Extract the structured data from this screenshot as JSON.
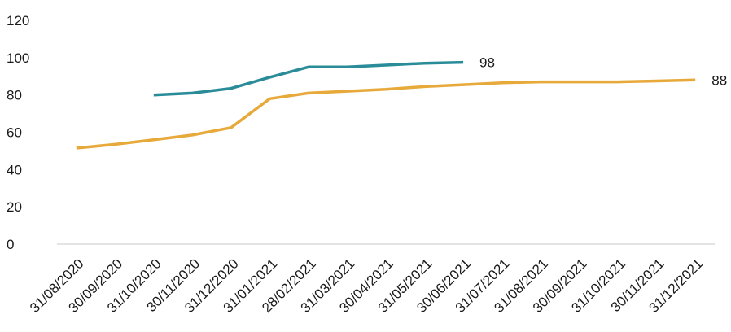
{
  "chart_data": {
    "type": "line",
    "title": "",
    "xlabel": "",
    "ylabel": "",
    "ylim": [
      0,
      120
    ],
    "yticks": [
      0,
      20,
      40,
      60,
      80,
      100,
      120
    ],
    "grid": false,
    "legend": "none",
    "categories": [
      "31/08/2020",
      "30/09/2020",
      "31/10/2020",
      "30/11/2020",
      "31/12/2020",
      "31/01/2021",
      "28/02/2021",
      "31/03/2021",
      "30/04/2021",
      "31/05/2021",
      "30/06/2021",
      "31/07/2021",
      "31/08/2021",
      "30/09/2021",
      "31/10/2021",
      "30/11/2021",
      "31/12/2021"
    ],
    "series": [
      {
        "color": "#2a8c99",
        "values": [
          null,
          null,
          80,
          81,
          83.5,
          89.5,
          95,
          95,
          96,
          97,
          97.5,
          null,
          null,
          null,
          null,
          null,
          null
        ],
        "end_label": "98"
      },
      {
        "color": "#e7a93a",
        "values": [
          51.5,
          53.5,
          56,
          58.5,
          62.5,
          78,
          81,
          82,
          83,
          84.5,
          85.5,
          86.5,
          87,
          87,
          87,
          87.5,
          88
        ],
        "end_label": "88"
      }
    ]
  }
}
